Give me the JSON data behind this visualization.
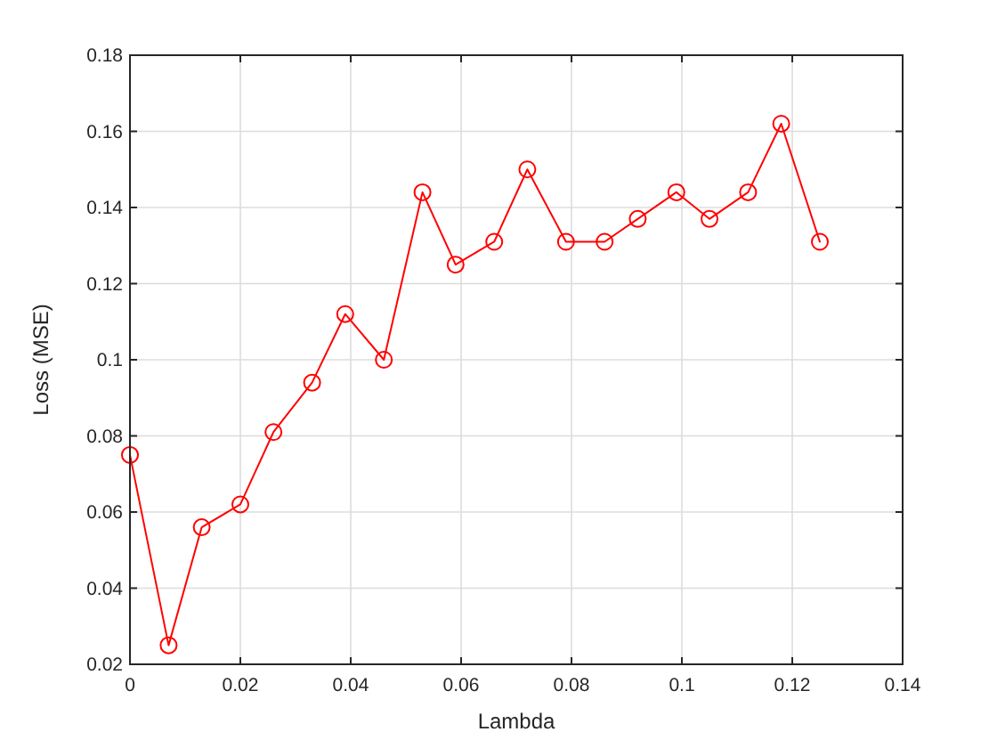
{
  "chart_data": {
    "type": "line",
    "xlabel": "Lambda",
    "ylabel": "Loss (MSE)",
    "x": [
      0,
      0.007,
      0.013,
      0.02,
      0.026,
      0.033,
      0.039,
      0.046,
      0.053,
      0.059,
      0.066,
      0.072,
      0.079,
      0.086,
      0.092,
      0.099,
      0.105,
      0.112,
      0.118,
      0.125
    ],
    "series": [
      {
        "color": "#ff0000",
        "values": [
          0.075,
          0.025,
          0.056,
          0.062,
          0.081,
          0.094,
          0.112,
          0.1,
          0.144,
          0.125,
          0.131,
          0.15,
          0.131,
          0.131,
          0.137,
          0.144,
          0.137,
          0.144,
          0.162,
          0.131
        ]
      }
    ],
    "xlim": [
      0,
      0.14
    ],
    "xticks": [
      0,
      0.02,
      0.04,
      0.06,
      0.08,
      0.1,
      0.12,
      0.14
    ],
    "ylim": [
      0.02,
      0.18
    ],
    "yticks": [
      0.02,
      0.04,
      0.06,
      0.08,
      0.1,
      0.12,
      0.14,
      0.16,
      0.18
    ],
    "grid": true,
    "marker": "circle",
    "line_style": "solid"
  }
}
